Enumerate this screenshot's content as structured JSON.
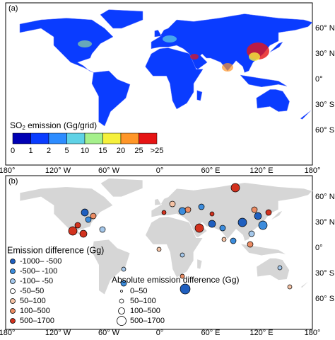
{
  "panel_a": {
    "label": "(a)",
    "lat_labels": [
      "60° N",
      "30° N",
      "0°",
      "30° S",
      "60° S"
    ],
    "colorbar": {
      "title_parts": [
        "SO",
        "2",
        " emission (Gg/grid)"
      ],
      "labels": [
        "0",
        "1",
        "2",
        "5",
        "10",
        "15",
        "20",
        "25",
        ">25"
      ],
      "colors": [
        "#0000b4",
        "#0a3cff",
        "#2d8cff",
        "#5fd2e6",
        "#a5f08c",
        "#f5f03c",
        "#ff9628",
        "#e61414"
      ]
    }
  },
  "panel_b": {
    "label": "(b)",
    "lat_labels": [
      "60° N",
      "30° N",
      "0°",
      "30° S",
      "60° S"
    ],
    "difference_legend": {
      "title": "Emission difference (Gg)",
      "items": [
        {
          "label": "-1000– -500",
          "color": "#1f5fbf"
        },
        {
          "label": "-500– -100",
          "color": "#3c8cdc"
        },
        {
          "label": "-100– -50",
          "color": "#a5c8eb"
        },
        {
          "label": "-50–50",
          "color": "#ffffff"
        },
        {
          "label": "50–100",
          "color": "#f5c3a5"
        },
        {
          "label": "100–500",
          "color": "#eb8c64"
        },
        {
          "label": "500–1700",
          "color": "#d2321e"
        }
      ]
    },
    "size_legend": {
      "title": "Absolute emission difference (Gg)",
      "items": [
        "0–50",
        "50–100",
        "100–500",
        "500–1700"
      ]
    }
  },
  "lon_labels": [
    "180°",
    "120° W",
    "60° W",
    "0°",
    "60° E",
    "120° E",
    "180°"
  ]
}
